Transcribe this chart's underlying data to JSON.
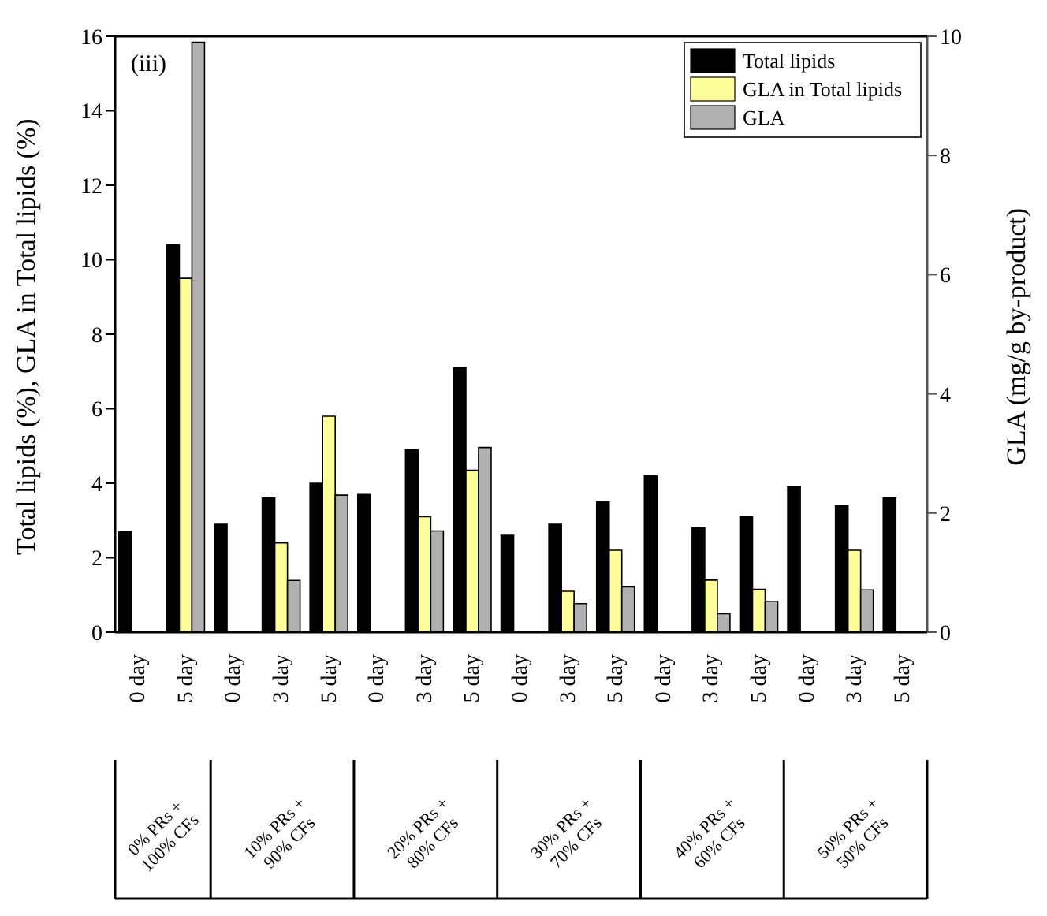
{
  "chart_data": {
    "type": "bar",
    "ylabel": "Total lipids (%), GLA in Total lipids (%)",
    "y2label": "GLA (mg/g by-product)",
    "categories": [
      "0 day",
      "5 day",
      "0 day",
      "3 day",
      "5 day",
      "0 day",
      "3 day",
      "5 day",
      "0 day",
      "3 day",
      "5 day",
      "0 day",
      "3 day",
      "5 day",
      "0 day",
      "3 day",
      "5 day"
    ],
    "series": [
      {
        "name": "Total lipids",
        "color": "#000000",
        "values": [
          2.7,
          10.4,
          2.9,
          3.6,
          4.0,
          3.7,
          4.9,
          7.1,
          2.6,
          2.9,
          3.5,
          4.2,
          2.8,
          3.1,
          3.9,
          3.4,
          3.6
        ]
      },
      {
        "name": "GLA in Total lipids",
        "color": "#ffff99",
        "values": [
          null,
          9.5,
          null,
          2.4,
          5.8,
          null,
          3.1,
          4.35,
          null,
          1.1,
          2.2,
          null,
          1.4,
          1.15,
          null,
          2.2,
          null
        ]
      },
      {
        "name": "GLA",
        "color": "#b0b0b0",
        "axis": "y2",
        "values": [
          null,
          9.9,
          null,
          0.87,
          2.3,
          null,
          1.7,
          3.1,
          null,
          0.48,
          0.76,
          null,
          0.31,
          0.52,
          null,
          0.71,
          null
        ]
      }
    ],
    "ylim": [
      0,
      16
    ],
    "yticks": [
      0,
      2,
      4,
      6,
      8,
      10,
      12,
      14,
      16
    ],
    "y2lim": [
      0,
      10
    ],
    "y2ticks": [
      0,
      2,
      4,
      6,
      8,
      10
    ],
    "legend": "top right",
    "grid": false,
    "annotations": [
      "(iii)",
      "0% PRs + 100% CFs",
      "10% PRs + 90% CFs",
      "20% PRs + 80% CFs",
      "30% PRs + 70% CFs",
      "40% PRs + 60% CFs",
      "50% PRs + 50% CFs"
    ]
  }
}
